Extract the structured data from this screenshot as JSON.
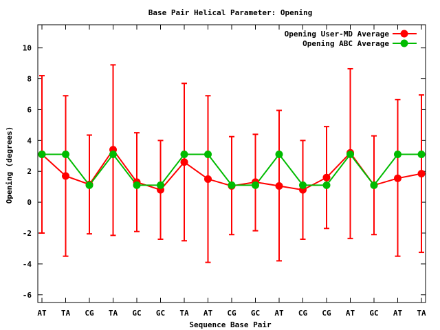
{
  "chart_data": {
    "type": "line",
    "title": "Base Pair Helical Parameter: Opening",
    "xlabel": "Sequence Base Pair",
    "ylabel": "Opening (degrees)",
    "ylim": [
      -6.5,
      11.5
    ],
    "yticks": [
      -6,
      -4,
      -2,
      0,
      2,
      4,
      6,
      8,
      10
    ],
    "categories": [
      "AT",
      "TA",
      "CG",
      "TA",
      "GC",
      "GC",
      "TA",
      "AT",
      "CG",
      "GC",
      "AT",
      "CG",
      "CG",
      "AT",
      "GC",
      "AT",
      "TA"
    ],
    "grid": false,
    "legend_position": "top-right",
    "series": [
      {
        "name": "Opening User-MD Average",
        "color": "#ff0000",
        "values": [
          3.1,
          1.7,
          1.15,
          3.4,
          1.3,
          0.8,
          2.6,
          1.5,
          1.05,
          1.3,
          1.05,
          0.8,
          1.6,
          3.2,
          1.1,
          1.55,
          1.85
        ],
        "err_low": [
          -2.0,
          -3.5,
          -2.05,
          -2.15,
          -1.9,
          -2.4,
          -2.5,
          -3.9,
          -2.1,
          -1.85,
          -3.8,
          -2.4,
          -1.7,
          -2.35,
          -2.1,
          -3.5,
          -3.25
        ],
        "err_high": [
          8.2,
          6.9,
          4.35,
          8.9,
          4.5,
          4.0,
          7.7,
          6.9,
          4.25,
          4.4,
          5.95,
          4.0,
          4.9,
          8.65,
          4.3,
          6.65,
          6.95
        ]
      },
      {
        "name": "Opening ABC Average",
        "color": "#00bb00",
        "values": [
          3.1,
          3.1,
          1.1,
          3.1,
          1.1,
          1.1,
          3.1,
          3.1,
          1.1,
          1.1,
          3.1,
          1.1,
          1.1,
          3.1,
          1.1,
          3.1,
          3.1
        ]
      }
    ]
  }
}
